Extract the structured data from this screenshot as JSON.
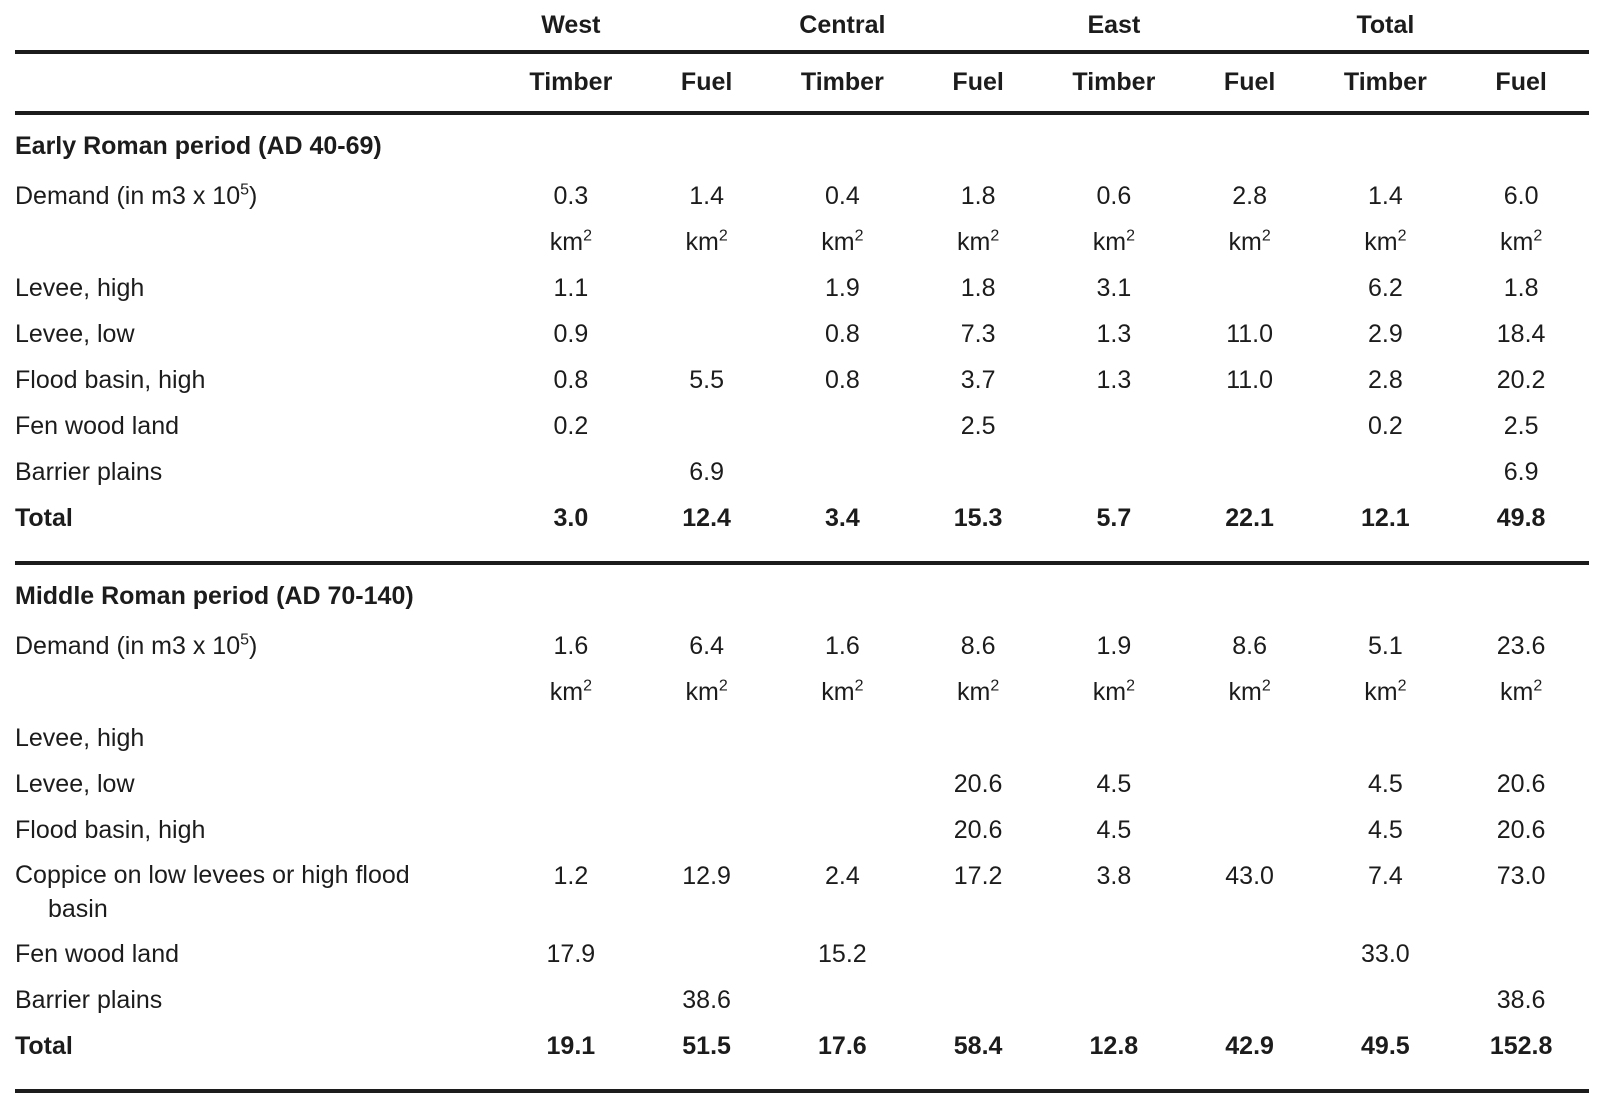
{
  "table": {
    "groups": [
      {
        "label": "West",
        "columns": [
          "Timber",
          "Fuel"
        ]
      },
      {
        "label": "Central",
        "columns": [
          "Timber",
          "Fuel"
        ]
      },
      {
        "label": "East",
        "columns": [
          "Timber",
          "Fuel"
        ]
      },
      {
        "label": "Total",
        "columns": [
          "Timber",
          "Fuel"
        ]
      }
    ],
    "unit": {
      "base": "km",
      "sup": "2"
    },
    "sections": [
      {
        "title": "Early Roman period (AD 40-69)",
        "demand": {
          "label_pre": "Demand (in m3 x 10",
          "label_sup": "5",
          "label_post": ")",
          "values": [
            "0.3",
            "1.4",
            "0.4",
            "1.8",
            "0.6",
            "2.8",
            "1.4",
            "6.0"
          ]
        },
        "rows": [
          {
            "label": "Levee, high",
            "values": [
              "1.1",
              "",
              "1.9",
              "1.8",
              "3.1",
              "",
              "6.2",
              "1.8"
            ]
          },
          {
            "label": "Levee, low",
            "values": [
              "0.9",
              "",
              "0.8",
              "7.3",
              "1.3",
              "11.0",
              "2.9",
              "18.4"
            ]
          },
          {
            "label": "Flood basin, high",
            "values": [
              "0.8",
              "5.5",
              "0.8",
              "3.7",
              "1.3",
              "11.0",
              "2.8",
              "20.2"
            ]
          },
          {
            "label": "Fen wood land",
            "values": [
              "0.2",
              "",
              "",
              "2.5",
              "",
              "",
              "0.2",
              "2.5"
            ]
          },
          {
            "label": "Barrier plains",
            "values": [
              "",
              "6.9",
              "",
              "",
              "",
              "",
              "",
              "6.9"
            ]
          },
          {
            "label": "Total",
            "bold": true,
            "values": [
              "3.0",
              "12.4",
              "3.4",
              "15.3",
              "5.7",
              "22.1",
              "12.1",
              "49.8"
            ]
          }
        ]
      },
      {
        "title": "Middle Roman period (AD 70-140)",
        "demand": {
          "label_pre": "Demand (in m3 x 10",
          "label_sup": "5",
          "label_post": ")",
          "values": [
            "1.6",
            "6.4",
            "1.6",
            "8.6",
            "1.9",
            "8.6",
            "5.1",
            "23.6"
          ]
        },
        "rows": [
          {
            "label": "Levee, high",
            "values": [
              "",
              "",
              "",
              "",
              "",
              "",
              "",
              ""
            ]
          },
          {
            "label": "Levee, low",
            "values": [
              "",
              "",
              "",
              "20.6",
              "4.5",
              "",
              "4.5",
              "20.6"
            ]
          },
          {
            "label": "Flood basin, high",
            "values": [
              "",
              "",
              "",
              "20.6",
              "4.5",
              "",
              "4.5",
              "20.6"
            ]
          },
          {
            "label_lines": [
              "Coppice on low levees or high flood",
              "basin"
            ],
            "values": [
              "1.2",
              "12.9",
              "2.4",
              "17.2",
              "3.8",
              "43.0",
              "7.4",
              "73.0"
            ]
          },
          {
            "label": "Fen wood land",
            "values": [
              "17.9",
              "",
              "15.2",
              "",
              "",
              "",
              "33.0",
              ""
            ]
          },
          {
            "label": "Barrier plains",
            "values": [
              "",
              "38.6",
              "",
              "",
              "",
              "",
              "",
              "38.6"
            ]
          },
          {
            "label": "Total",
            "bold": true,
            "values": [
              "19.1",
              "51.5",
              "17.6",
              "58.4",
              "12.8",
              "42.9",
              "49.5",
              "152.8"
            ]
          }
        ]
      }
    ]
  }
}
